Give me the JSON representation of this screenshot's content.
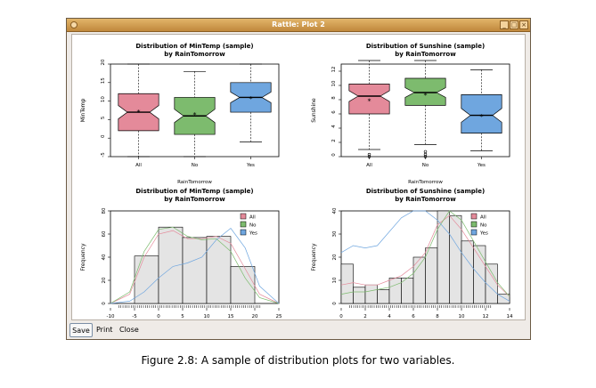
{
  "window": {
    "title": "Rattle: Plot 2",
    "buttons": {
      "save": "Save",
      "print": "Print",
      "close": "Close"
    }
  },
  "caption": "Figure 2.8: A sample of distribution plots for two variables.",
  "colors": {
    "All": "#e48a9a",
    "No": "#7dbb6e",
    "Yes": "#6fa6df",
    "hist": "#e4e4e4"
  },
  "chart_data": [
    {
      "type": "boxplot",
      "title": "Distribution of MinTemp (sample)",
      "subtitle": "by RainTomorrow",
      "xlabel": "RainTomorrow",
      "ylabel": "MinTemp",
      "ylim": [
        -5,
        20
      ],
      "yticks": [
        -5,
        0,
        5,
        10,
        15,
        20
      ],
      "categories": [
        "All",
        "No",
        "Yes"
      ],
      "boxes": [
        {
          "name": "All",
          "whisker_low": -5,
          "q1": 2,
          "median": 7,
          "q3": 12,
          "whisker_high": 20,
          "mean": 7,
          "outliers": []
        },
        {
          "name": "No",
          "whisker_low": -5,
          "q1": 1,
          "median": 6,
          "q3": 11,
          "whisker_high": 18,
          "mean": 6.3,
          "outliers": []
        },
        {
          "name": "Yes",
          "whisker_low": -1,
          "q1": 7,
          "median": 11,
          "q3": 15,
          "whisker_high": 20,
          "mean": 10.6,
          "outliers": []
        }
      ]
    },
    {
      "type": "boxplot",
      "title": "Distribution of Sunshine (sample)",
      "subtitle": "by RainTomorrow",
      "xlabel": "RainTomorrow",
      "ylabel": "Sunshine",
      "ylim": [
        0,
        13
      ],
      "yticks": [
        0,
        2,
        4,
        6,
        8,
        10,
        12
      ],
      "categories": [
        "All",
        "No",
        "Yes"
      ],
      "boxes": [
        {
          "name": "All",
          "whisker_low": 1,
          "q1": 6,
          "median": 8.5,
          "q3": 10.2,
          "whisker_high": 13.5,
          "mean": 7.8,
          "outliers": [
            0,
            0.3
          ]
        },
        {
          "name": "No",
          "whisker_low": 1.7,
          "q1": 7.2,
          "median": 9,
          "q3": 11,
          "whisker_high": 13.5,
          "mean": 8.6,
          "outliers": [
            0,
            0.3,
            0.7
          ]
        },
        {
          "name": "Yes",
          "whisker_low": 0.8,
          "q1": 3.3,
          "median": 5.8,
          "q3": 8.7,
          "whisker_high": 12.2,
          "mean": 5.6,
          "outliers": []
        }
      ]
    },
    {
      "type": "histogram",
      "title": "Distribution of MinTemp (sample)",
      "subtitle": "by RainTomorrow",
      "xlabel": "MinTemp",
      "ylabel": "Frequency",
      "xlim": [
        -10,
        25
      ],
      "ylim": [
        0,
        80
      ],
      "xticks": [
        -10,
        -5,
        0,
        5,
        10,
        15,
        20,
        25
      ],
      "yticks": [
        0,
        20,
        40,
        60,
        80
      ],
      "bins": [
        {
          "from": -5,
          "to": 0,
          "count": 41
        },
        {
          "from": 0,
          "to": 5,
          "count": 66
        },
        {
          "from": 5,
          "to": 10,
          "count": 57
        },
        {
          "from": 10,
          "to": 15,
          "count": 58
        },
        {
          "from": 15,
          "to": 20,
          "count": 32
        }
      ],
      "legend": {
        "position": "top-right",
        "entries": [
          "All",
          "No",
          "Yes"
        ]
      },
      "density": {
        "x": [
          -10,
          -6,
          -3,
          0,
          3,
          6,
          9,
          12,
          15,
          18,
          21,
          25
        ],
        "All": [
          0,
          8,
          40,
          60,
          63,
          56,
          56,
          58,
          52,
          30,
          8,
          0
        ],
        "No": [
          0,
          10,
          45,
          64,
          66,
          58,
          55,
          56,
          45,
          22,
          5,
          0
        ],
        "Yes": [
          0,
          2,
          10,
          22,
          32,
          35,
          40,
          55,
          65,
          48,
          15,
          0
        ]
      }
    },
    {
      "type": "histogram",
      "title": "Distribution of Sunshine (sample)",
      "subtitle": "by RainTomorrow",
      "xlabel": "Sunshine",
      "ylabel": "Frequency",
      "xlim": [
        0,
        14
      ],
      "ylim": [
        0,
        40
      ],
      "xticks": [
        0,
        2,
        4,
        6,
        8,
        10,
        12,
        14
      ],
      "yticks": [
        0,
        10,
        20,
        30,
        40
      ],
      "bins": [
        {
          "from": 0,
          "to": 1,
          "count": 17
        },
        {
          "from": 1,
          "to": 2,
          "count": 7
        },
        {
          "from": 2,
          "to": 3,
          "count": 8
        },
        {
          "from": 3,
          "to": 4,
          "count": 6
        },
        {
          "from": 4,
          "to": 5,
          "count": 11
        },
        {
          "from": 5,
          "to": 6,
          "count": 11
        },
        {
          "from": 6,
          "to": 7,
          "count": 20
        },
        {
          "from": 7,
          "to": 8,
          "count": 24
        },
        {
          "from": 8,
          "to": 9,
          "count": 40
        },
        {
          "from": 9,
          "to": 10,
          "count": 38
        },
        {
          "from": 10,
          "to": 11,
          "count": 27
        },
        {
          "from": 11,
          "to": 12,
          "count": 25
        },
        {
          "from": 12,
          "to": 13,
          "count": 17
        },
        {
          "from": 13,
          "to": 14,
          "count": 4
        }
      ],
      "legend": {
        "position": "top-right",
        "entries": [
          "All",
          "No",
          "Yes"
        ]
      },
      "density": {
        "x": [
          0,
          1,
          2,
          3,
          4,
          5,
          6,
          7,
          8,
          9,
          10,
          11,
          12,
          13,
          14
        ],
        "All": [
          8,
          9,
          8,
          8,
          10,
          12,
          16,
          22,
          34,
          38,
          32,
          24,
          16,
          8,
          3
        ],
        "No": [
          4,
          5,
          5,
          6,
          7,
          9,
          13,
          20,
          32,
          40,
          36,
          27,
          18,
          9,
          3
        ],
        "Yes": [
          22,
          25,
          24,
          25,
          31,
          37,
          40,
          40,
          36,
          30,
          22,
          15,
          9,
          4,
          1
        ]
      }
    }
  ]
}
